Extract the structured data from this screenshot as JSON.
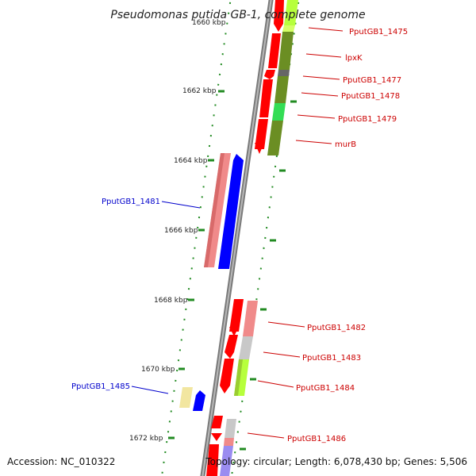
{
  "title": "Pseudomonas putida GB-1, complete genome",
  "footer": {
    "accession": "Accession: NC_010322",
    "summary": "Topology: circular; Length: 6,078,430 bp; Genes: 5,506"
  },
  "ticks": {
    "top_partial": "1660 kbp",
    "t1662": "1662 kbp",
    "t1664": "1664 kbp",
    "t1666": "1666 kbp",
    "t1668": "1668 kbp",
    "t1670": "1670 kbp",
    "t1672": "1672 kbp"
  },
  "genes": {
    "g1475": "PputGB1_1475",
    "lpxK": "lpxK",
    "g1477": "PputGB1_1477",
    "g1478": "PputGB1_1478",
    "g1479": "PputGB1_1479",
    "murB": "murB",
    "g1481": "PputGB1_1481",
    "g1482": "PputGB1_1482",
    "g1483": "PputGB1_1483",
    "g1484": "PputGB1_1484",
    "g1485": "PputGB1_1485",
    "g1486": "PputGB1_1486"
  },
  "colors": {
    "backbone": "#8c8c8c",
    "forward_label": "#cc0000",
    "reverse_label": "#0000cc",
    "gene_red": "#ff0000",
    "gene_pink": "#f08a8a",
    "gene_blue": "#0000ff",
    "gene_olive": "#6b8e23",
    "gene_lime": "#b7ff3c",
    "gene_green": "#33dd55",
    "gene_gray": "#c8c8c8",
    "gene_yellow": "#f2e6a0",
    "gene_lavender": "#9a8cf0",
    "tick_green": "#228b22"
  }
}
